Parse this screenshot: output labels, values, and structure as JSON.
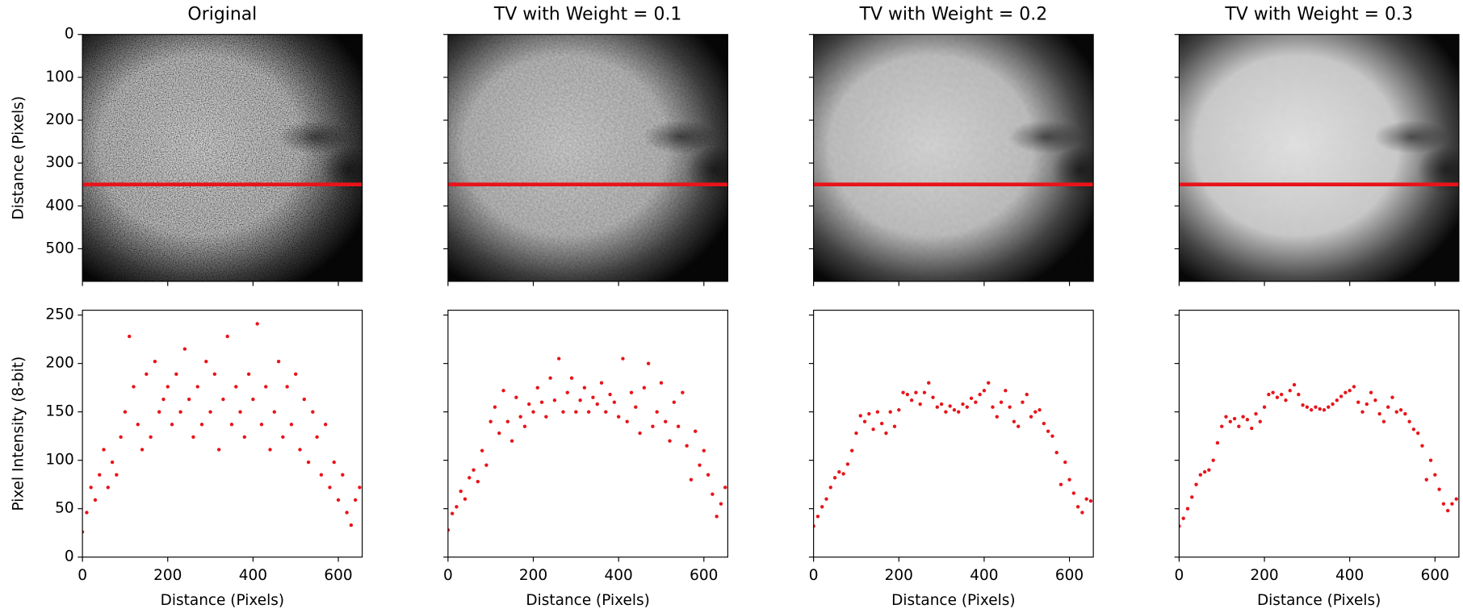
{
  "chart_data": [
    {
      "type": "image",
      "title": "Original",
      "ylabel": "Distance (Pixels)",
      "ylim": [
        576,
        0
      ],
      "yticks": [
        0,
        100,
        200,
        300,
        400,
        500
      ],
      "line_y": 350,
      "line_color": "#e8141a"
    },
    {
      "type": "image",
      "title": "TV with Weight = 0.1",
      "ylim": [
        576,
        0
      ],
      "line_y": 350,
      "line_color": "#e8141a"
    },
    {
      "type": "image",
      "title": "TV with Weight = 0.2",
      "ylim": [
        576,
        0
      ],
      "line_y": 350,
      "line_color": "#e8141a"
    },
    {
      "type": "image",
      "title": "TV with Weight = 0.3",
      "ylim": [
        576,
        0
      ],
      "line_y": 350,
      "line_color": "#e8141a"
    },
    {
      "type": "scatter",
      "xlabel": "Distance (Pixels)",
      "ylabel": "Pixel Intensity (8-bit)",
      "color": "#e8141a",
      "xlim": [
        0,
        656
      ],
      "ylim": [
        0,
        255
      ],
      "xticks": [
        0,
        200,
        400,
        600
      ],
      "yticks": [
        0,
        50,
        100,
        150,
        200,
        250
      ],
      "x": [
        0,
        10,
        20,
        30,
        40,
        50,
        60,
        70,
        80,
        90,
        100,
        110,
        120,
        130,
        140,
        150,
        160,
        170,
        180,
        190,
        200,
        210,
        220,
        230,
        240,
        250,
        260,
        270,
        280,
        290,
        300,
        310,
        320,
        330,
        340,
        350,
        360,
        370,
        380,
        390,
        400,
        410,
        420,
        430,
        440,
        450,
        460,
        470,
        480,
        490,
        500,
        510,
        520,
        530,
        540,
        550,
        560,
        570,
        580,
        590,
        600,
        610,
        620,
        630,
        640,
        650
      ],
      "values": [
        26,
        46,
        72,
        59,
        85,
        111,
        72,
        98,
        85,
        124,
        150,
        228,
        176,
        137,
        111,
        189,
        124,
        202,
        150,
        163,
        176,
        137,
        189,
        150,
        215,
        163,
        124,
        176,
        137,
        202,
        150,
        189,
        111,
        163,
        228,
        137,
        176,
        150,
        124,
        189,
        163,
        241,
        137,
        176,
        111,
        150,
        202,
        124,
        176,
        137,
        189,
        111,
        163,
        98,
        150,
        124,
        85,
        137,
        72,
        98,
        59,
        85,
        46,
        33,
        59,
        72
      ]
    },
    {
      "type": "scatter",
      "xlabel": "Distance (Pixels)",
      "color": "#e8141a",
      "xlim": [
        0,
        656
      ],
      "ylim": [
        0,
        255
      ],
      "xticks": [
        0,
        200,
        400,
        600
      ],
      "x": [
        0,
        10,
        20,
        30,
        40,
        50,
        60,
        70,
        80,
        90,
        100,
        110,
        120,
        130,
        140,
        150,
        160,
        170,
        180,
        190,
        200,
        210,
        220,
        230,
        240,
        250,
        260,
        270,
        280,
        290,
        300,
        310,
        320,
        330,
        340,
        350,
        360,
        370,
        380,
        390,
        400,
        410,
        420,
        430,
        440,
        450,
        460,
        470,
        480,
        490,
        500,
        510,
        520,
        530,
        540,
        550,
        560,
        570,
        580,
        590,
        600,
        610,
        620,
        630,
        640,
        650
      ],
      "values": [
        28,
        45,
        52,
        68,
        60,
        82,
        90,
        78,
        110,
        95,
        140,
        155,
        128,
        172,
        140,
        120,
        165,
        145,
        135,
        158,
        150,
        175,
        160,
        145,
        185,
        162,
        205,
        150,
        170,
        185,
        150,
        162,
        175,
        150,
        165,
        158,
        180,
        150,
        168,
        160,
        145,
        205,
        140,
        170,
        155,
        128,
        175,
        200,
        135,
        150,
        180,
        140,
        120,
        160,
        135,
        170,
        115,
        80,
        130,
        95,
        110,
        85,
        65,
        42,
        55,
        72
      ]
    },
    {
      "type": "scatter",
      "xlabel": "Distance (Pixels)",
      "color": "#e8141a",
      "xlim": [
        0,
        656
      ],
      "ylim": [
        0,
        255
      ],
      "xticks": [
        0,
        200,
        400,
        600
      ],
      "x": [
        0,
        10,
        20,
        30,
        40,
        50,
        60,
        70,
        80,
        90,
        100,
        110,
        120,
        130,
        140,
        150,
        160,
        170,
        180,
        190,
        200,
        210,
        220,
        230,
        240,
        250,
        260,
        270,
        280,
        290,
        300,
        310,
        320,
        330,
        340,
        350,
        360,
        370,
        380,
        390,
        400,
        410,
        420,
        430,
        440,
        450,
        460,
        470,
        480,
        490,
        500,
        510,
        520,
        530,
        540,
        550,
        560,
        570,
        580,
        590,
        600,
        610,
        620,
        630,
        640,
        650
      ],
      "values": [
        32,
        42,
        52,
        60,
        72,
        82,
        88,
        86,
        96,
        110,
        128,
        146,
        140,
        148,
        132,
        150,
        138,
        128,
        150,
        135,
        152,
        170,
        168,
        162,
        170,
        158,
        170,
        180,
        165,
        155,
        158,
        150,
        156,
        152,
        150,
        158,
        155,
        164,
        160,
        168,
        172,
        180,
        155,
        145,
        160,
        172,
        155,
        140,
        135,
        160,
        168,
        145,
        150,
        152,
        138,
        130,
        125,
        108,
        75,
        98,
        80,
        66,
        52,
        46,
        60,
        58
      ]
    },
    {
      "type": "scatter",
      "xlabel": "Distance (Pixels)",
      "color": "#e8141a",
      "xlim": [
        0,
        656
      ],
      "ylim": [
        0,
        255
      ],
      "xticks": [
        0,
        200,
        400,
        600
      ],
      "x": [
        0,
        10,
        20,
        30,
        40,
        50,
        60,
        70,
        80,
        90,
        100,
        110,
        120,
        130,
        140,
        150,
        160,
        170,
        180,
        190,
        200,
        210,
        220,
        230,
        240,
        250,
        260,
        270,
        280,
        290,
        300,
        310,
        320,
        330,
        340,
        350,
        360,
        370,
        380,
        390,
        400,
        410,
        420,
        430,
        440,
        450,
        460,
        470,
        480,
        490,
        500,
        510,
        520,
        530,
        540,
        550,
        560,
        570,
        580,
        590,
        600,
        610,
        620,
        630,
        640,
        650
      ],
      "values": [
        32,
        40,
        50,
        62,
        75,
        85,
        88,
        90,
        100,
        118,
        135,
        145,
        140,
        143,
        135,
        145,
        142,
        133,
        148,
        140,
        155,
        168,
        170,
        165,
        168,
        162,
        172,
        178,
        168,
        157,
        155,
        152,
        155,
        153,
        152,
        155,
        158,
        162,
        166,
        170,
        172,
        176,
        160,
        150,
        158,
        170,
        162,
        148,
        140,
        155,
        165,
        150,
        152,
        148,
        140,
        132,
        128,
        115,
        80,
        100,
        85,
        70,
        55,
        48,
        55,
        60
      ]
    }
  ]
}
